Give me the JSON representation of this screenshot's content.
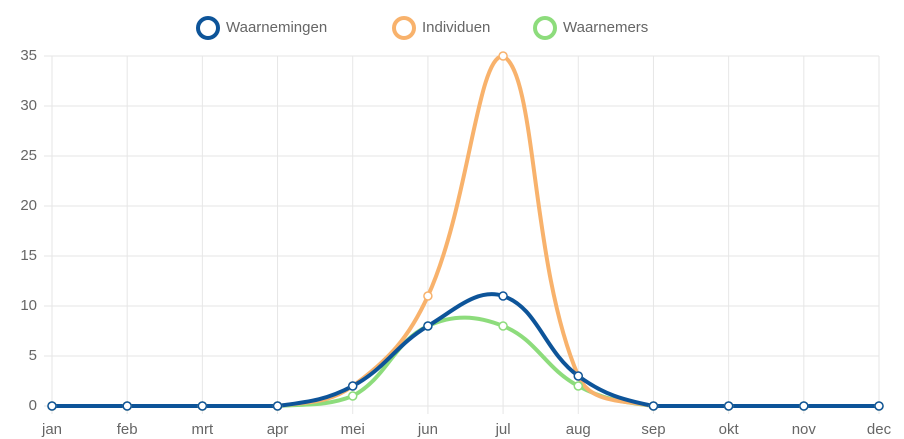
{
  "chart_data": {
    "type": "line",
    "categories": [
      "jan",
      "feb",
      "mrt",
      "apr",
      "mei",
      "jun",
      "jul",
      "aug",
      "sep",
      "okt",
      "nov",
      "dec"
    ],
    "series": [
      {
        "name": "Waarnemingen",
        "color": "#0d5499",
        "values": [
          0,
          0,
          0,
          0,
          2,
          8,
          11,
          3,
          0,
          0,
          0,
          0
        ]
      },
      {
        "name": "Individuen",
        "color": "#f8b26c",
        "values": [
          0,
          0,
          0,
          0,
          2,
          11,
          35,
          3,
          0,
          0,
          0,
          0
        ]
      },
      {
        "name": "Waarnemers",
        "color": "#8ddc7c",
        "values": [
          0,
          0,
          0,
          0,
          1,
          8,
          8,
          2,
          0,
          0,
          0,
          0
        ]
      }
    ],
    "ylim": [
      0,
      35
    ],
    "yticks": [
      0,
      5,
      10,
      15,
      20,
      25,
      30,
      35
    ],
    "grid": true,
    "legend": "top"
  }
}
